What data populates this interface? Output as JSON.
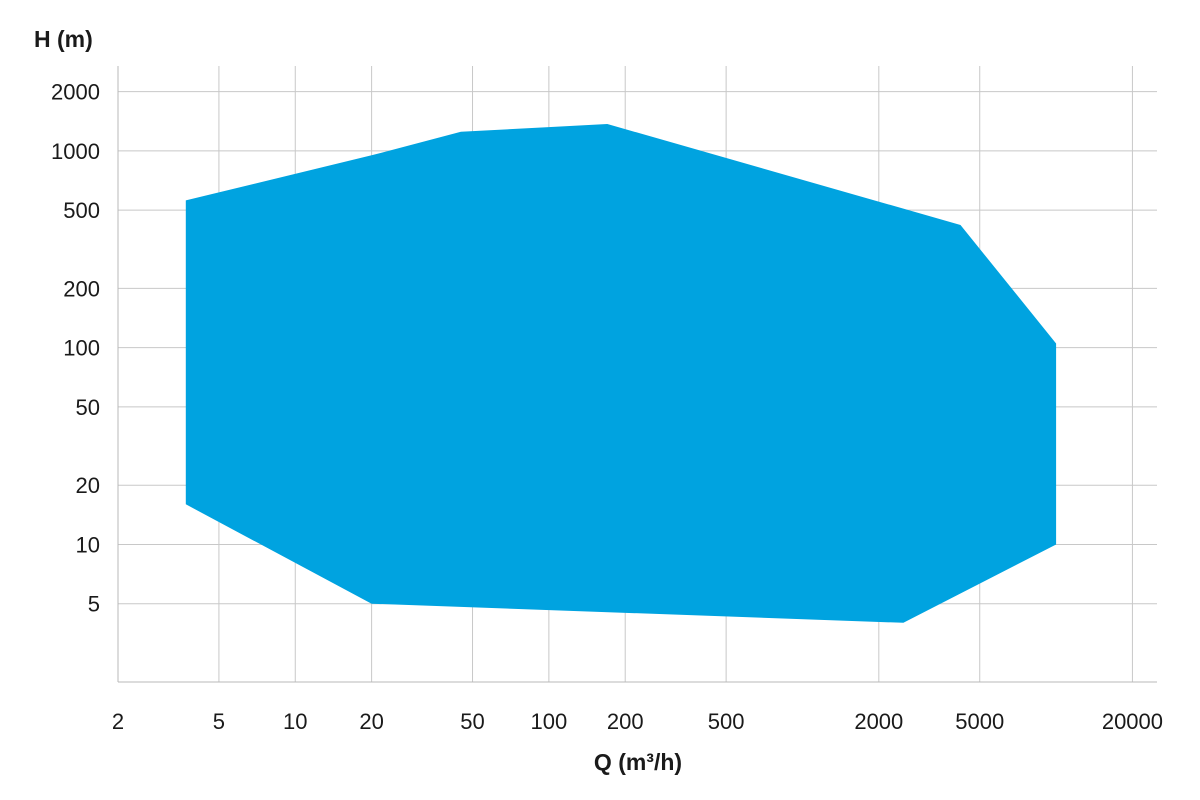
{
  "chart_data": {
    "type": "area",
    "xlabel": "Q (m³/h)",
    "ylabel": "H (m)",
    "x_scale": "log",
    "y_scale": "log",
    "xlim": [
      2,
      25000
    ],
    "ylim": [
      2,
      2700
    ],
    "x_ticks": [
      2,
      5,
      10,
      20,
      50,
      100,
      200,
      500,
      2000,
      5000,
      20000
    ],
    "x_tick_labels": [
      "2",
      "5",
      "10",
      "20",
      "50",
      "100",
      "200",
      "500",
      "2000",
      "5000",
      "20000"
    ],
    "y_ticks": [
      5,
      10,
      20,
      50,
      100,
      200,
      500,
      1000,
      2000
    ],
    "y_tick_labels": [
      "5",
      "10",
      "20",
      "50",
      "100",
      "200",
      "500",
      "1000",
      "2000"
    ],
    "grid": true,
    "fill_color": "#00a3e0",
    "region": [
      {
        "x": 3.7,
        "y": 560
      },
      {
        "x": 20,
        "y": 950
      },
      {
        "x": 45,
        "y": 1250
      },
      {
        "x": 170,
        "y": 1370
      },
      {
        "x": 4200,
        "y": 420
      },
      {
        "x": 10000,
        "y": 105
      },
      {
        "x": 10000,
        "y": 10
      },
      {
        "x": 2500,
        "y": 4
      },
      {
        "x": 20,
        "y": 5
      },
      {
        "x": 3.7,
        "y": 16
      }
    ]
  }
}
